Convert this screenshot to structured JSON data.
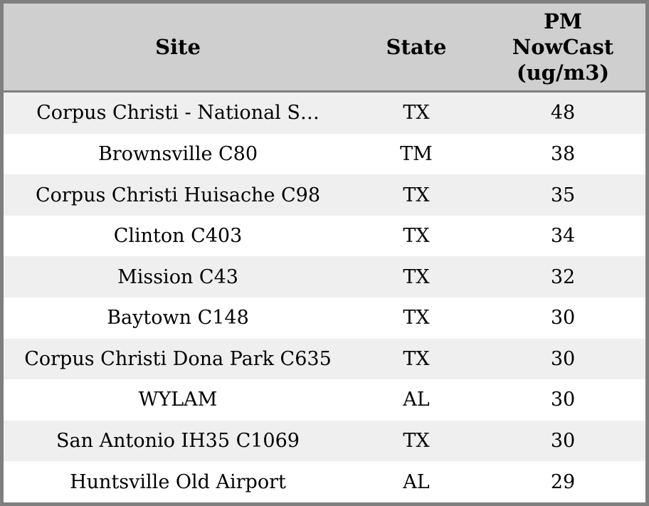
{
  "table": {
    "columns": [
      {
        "key": "site",
        "label": "Site"
      },
      {
        "key": "state",
        "label": "State"
      },
      {
        "key": "pm",
        "label": "PM NowCast (ug/m3)"
      }
    ],
    "rows": [
      {
        "site": "Corpus Christi - National S…",
        "state": "TX",
        "pm": "48"
      },
      {
        "site": "Brownsville C80",
        "state": "TM",
        "pm": "38"
      },
      {
        "site": "Corpus Christi Huisache C98",
        "state": "TX",
        "pm": "35"
      },
      {
        "site": "Clinton C403",
        "state": "TX",
        "pm": "34"
      },
      {
        "site": "Mission C43",
        "state": "TX",
        "pm": "32"
      },
      {
        "site": "Baytown C148",
        "state": "TX",
        "pm": "30"
      },
      {
        "site": "Corpus Christi Dona Park C635",
        "state": "TX",
        "pm": "30"
      },
      {
        "site": "WYLAM",
        "state": "AL",
        "pm": "30"
      },
      {
        "site": "San Antonio IH35 C1069",
        "state": "TX",
        "pm": "30"
      },
      {
        "site": "Huntsville Old Airport",
        "state": "AL",
        "pm": "29"
      }
    ]
  },
  "colors": {
    "outer_border": "#7f7f7f",
    "header_background": "#cfcfcf",
    "header_divider": "#7f7f7f",
    "row_stripe": "#efefef",
    "row_plain": "#ffffff",
    "text": "#000000"
  }
}
